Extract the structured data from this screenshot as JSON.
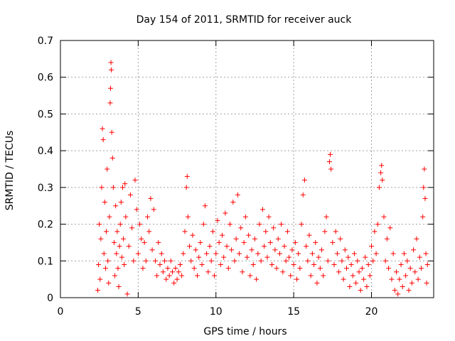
{
  "chart_data": {
    "type": "scatter",
    "title": "Day 154 of 2011, SRMTID for receiver auck",
    "xlabel": "GPS time / hours",
    "ylabel": "SRMTID / TECUs",
    "xlim": [
      0,
      24
    ],
    "ylim": [
      0,
      0.7
    ],
    "xticks": [
      "0",
      "5",
      "10",
      "15",
      "20"
    ],
    "xtick_values": [
      0,
      5,
      10,
      15,
      20
    ],
    "yticks": [
      "0",
      "0.1",
      "0.2",
      "0.3",
      "0.4",
      "0.5",
      "0.6",
      "0.7"
    ],
    "ytick_values": [
      0,
      0.1,
      0.2,
      0.3,
      0.4,
      0.5,
      0.6,
      0.7
    ],
    "grid": true,
    "marker": "+",
    "color": "#ff0000",
    "series": [
      {
        "name": "SRMTID",
        "points": [
          [
            2.4,
            0.02
          ],
          [
            2.45,
            0.09
          ],
          [
            2.5,
            0.2
          ],
          [
            2.55,
            0.05
          ],
          [
            2.6,
            0.16
          ],
          [
            2.65,
            0.3
          ],
          [
            2.7,
            0.46
          ],
          [
            2.75,
            0.43
          ],
          [
            2.8,
            0.12
          ],
          [
            2.85,
            0.26
          ],
          [
            2.9,
            0.08
          ],
          [
            2.95,
            0.18
          ],
          [
            3.0,
            0.35
          ],
          [
            3.05,
            0.1
          ],
          [
            3.1,
            0.04
          ],
          [
            3.15,
            0.22
          ],
          [
            3.2,
            0.53
          ],
          [
            3.22,
            0.57
          ],
          [
            3.25,
            0.64
          ],
          [
            3.27,
            0.62
          ],
          [
            3.3,
            0.45
          ],
          [
            3.35,
            0.38
          ],
          [
            3.4,
            0.3
          ],
          [
            3.45,
            0.15
          ],
          [
            3.5,
            0.06
          ],
          [
            3.55,
            0.25
          ],
          [
            3.6,
            0.12
          ],
          [
            3.65,
            0.18
          ],
          [
            3.7,
            0.08
          ],
          [
            3.75,
            0.03
          ],
          [
            3.8,
            0.14
          ],
          [
            3.85,
            0.2
          ],
          [
            3.9,
            0.26
          ],
          [
            3.95,
            0.11
          ],
          [
            4.0,
            0.3
          ],
          [
            4.05,
            0.16
          ],
          [
            4.1,
            0.09
          ],
          [
            4.15,
            0.31
          ],
          [
            4.2,
            0.22
          ],
          [
            4.3,
            0.01
          ],
          [
            4.4,
            0.14
          ],
          [
            4.5,
            0.28
          ],
          [
            4.6,
            0.19
          ],
          [
            4.7,
            0.1
          ],
          [
            4.8,
            0.32
          ],
          [
            4.9,
            0.24
          ],
          [
            5.0,
            0.12
          ],
          [
            5.1,
            0.2
          ],
          [
            5.2,
            0.16
          ],
          [
            5.3,
            0.08
          ],
          [
            5.4,
            0.15
          ],
          [
            5.5,
            0.1
          ],
          [
            5.6,
            0.22
          ],
          [
            5.7,
            0.18
          ],
          [
            5.8,
            0.27
          ],
          [
            5.9,
            0.13
          ],
          [
            6.0,
            0.24
          ],
          [
            6.1,
            0.1
          ],
          [
            6.2,
            0.06
          ],
          [
            6.3,
            0.15
          ],
          [
            6.4,
            0.09
          ],
          [
            6.5,
            0.12
          ],
          [
            6.6,
            0.07
          ],
          [
            6.7,
            0.1
          ],
          [
            6.8,
            0.05
          ],
          [
            6.9,
            0.08
          ],
          [
            7.0,
            0.06
          ],
          [
            7.1,
            0.1
          ],
          [
            7.2,
            0.07
          ],
          [
            7.3,
            0.04
          ],
          [
            7.4,
            0.08
          ],
          [
            7.5,
            0.05
          ],
          [
            7.6,
            0.07
          ],
          [
            7.7,
            0.09
          ],
          [
            7.8,
            0.06
          ],
          [
            7.9,
            0.12
          ],
          [
            8.0,
            0.18
          ],
          [
            8.1,
            0.3
          ],
          [
            8.15,
            0.33
          ],
          [
            8.2,
            0.22
          ],
          [
            8.3,
            0.14
          ],
          [
            8.4,
            0.1
          ],
          [
            8.5,
            0.17
          ],
          [
            8.6,
            0.08
          ],
          [
            8.7,
            0.13
          ],
          [
            8.8,
            0.06
          ],
          [
            8.9,
            0.11
          ],
          [
            9.0,
            0.15
          ],
          [
            9.1,
            0.09
          ],
          [
            9.2,
            0.2
          ],
          [
            9.3,
            0.25
          ],
          [
            9.4,
            0.12
          ],
          [
            9.5,
            0.07
          ],
          [
            9.6,
            0.14
          ],
          [
            9.7,
            0.1
          ],
          [
            9.8,
            0.18
          ],
          [
            9.9,
            0.06
          ],
          [
            10.0,
            0.12
          ],
          [
            10.1,
            0.21
          ],
          [
            10.2,
            0.15
          ],
          [
            10.3,
            0.09
          ],
          [
            10.4,
            0.17
          ],
          [
            10.5,
            0.11
          ],
          [
            10.6,
            0.23
          ],
          [
            10.7,
            0.14
          ],
          [
            10.8,
            0.08
          ],
          [
            10.9,
            0.2
          ],
          [
            11.0,
            0.13
          ],
          [
            11.1,
            0.26
          ],
          [
            11.2,
            0.1
          ],
          [
            11.3,
            0.16
          ],
          [
            11.4,
            0.28
          ],
          [
            11.5,
            0.12
          ],
          [
            11.6,
            0.19
          ],
          [
            11.7,
            0.07
          ],
          [
            11.8,
            0.15
          ],
          [
            11.9,
            0.22
          ],
          [
            12.0,
            0.11
          ],
          [
            12.1,
            0.17
          ],
          [
            12.2,
            0.06
          ],
          [
            12.3,
            0.13
          ],
          [
            12.4,
            0.09
          ],
          [
            12.5,
            0.16
          ],
          [
            12.6,
            0.05
          ],
          [
            12.7,
            0.12
          ],
          [
            12.8,
            0.2
          ],
          [
            12.9,
            0.1
          ],
          [
            13.0,
            0.24
          ],
          [
            13.1,
            0.14
          ],
          [
            13.2,
            0.18
          ],
          [
            13.3,
            0.11
          ],
          [
            13.4,
            0.22
          ],
          [
            13.5,
            0.15
          ],
          [
            13.6,
            0.09
          ],
          [
            13.7,
            0.19
          ],
          [
            13.8,
            0.13
          ],
          [
            13.9,
            0.08
          ],
          [
            14.0,
            0.16
          ],
          [
            14.1,
            0.12
          ],
          [
            14.2,
            0.2
          ],
          [
            14.3,
            0.07
          ],
          [
            14.4,
            0.14
          ],
          [
            14.5,
            0.1
          ],
          [
            14.6,
            0.18
          ],
          [
            14.7,
            0.11
          ],
          [
            14.8,
            0.06
          ],
          [
            14.9,
            0.13
          ],
          [
            15.0,
            0.09
          ],
          [
            15.1,
            0.15
          ],
          [
            15.2,
            0.05
          ],
          [
            15.3,
            0.12
          ],
          [
            15.4,
            0.08
          ],
          [
            15.5,
            0.2
          ],
          [
            15.6,
            0.28
          ],
          [
            15.7,
            0.32
          ],
          [
            15.8,
            0.14
          ],
          [
            15.9,
            0.1
          ],
          [
            16.0,
            0.17
          ],
          [
            16.1,
            0.06
          ],
          [
            16.2,
            0.12
          ],
          [
            16.3,
            0.09
          ],
          [
            16.4,
            0.15
          ],
          [
            16.5,
            0.04
          ],
          [
            16.6,
            0.11
          ],
          [
            16.7,
            0.08
          ],
          [
            16.8,
            0.13
          ],
          [
            16.9,
            0.06
          ],
          [
            17.0,
            0.18
          ],
          [
            17.1,
            0.22
          ],
          [
            17.2,
            0.1
          ],
          [
            17.3,
            0.37
          ],
          [
            17.35,
            0.39
          ],
          [
            17.4,
            0.35
          ],
          [
            17.5,
            0.15
          ],
          [
            17.6,
            0.09
          ],
          [
            17.7,
            0.18
          ],
          [
            17.8,
            0.12
          ],
          [
            17.9,
            0.07
          ],
          [
            18.0,
            0.16
          ],
          [
            18.1,
            0.1
          ],
          [
            18.2,
            0.05
          ],
          [
            18.3,
            0.13
          ],
          [
            18.4,
            0.08
          ],
          [
            18.5,
            0.11
          ],
          [
            18.6,
            0.03
          ],
          [
            18.7,
            0.09
          ],
          [
            18.8,
            0.06
          ],
          [
            18.9,
            0.12
          ],
          [
            19.0,
            0.04
          ],
          [
            19.1,
            0.1
          ],
          [
            19.2,
            0.07
          ],
          [
            19.3,
            0.02
          ],
          [
            19.4,
            0.08
          ],
          [
            19.5,
            0.05
          ],
          [
            19.6,
            0.11
          ],
          [
            19.7,
            0.03
          ],
          [
            19.8,
            0.09
          ],
          [
            19.9,
            0.06
          ],
          [
            20.0,
            0.14
          ],
          [
            20.1,
            0.1
          ],
          [
            20.2,
            0.18
          ],
          [
            20.3,
            0.12
          ],
          [
            20.4,
            0.2
          ],
          [
            20.5,
            0.3
          ],
          [
            20.6,
            0.34
          ],
          [
            20.65,
            0.36
          ],
          [
            20.7,
            0.32
          ],
          [
            20.8,
            0.22
          ],
          [
            20.9,
            0.1
          ],
          [
            21.0,
            0.16
          ],
          [
            21.1,
            0.08
          ],
          [
            21.2,
            0.19
          ],
          [
            21.3,
            0.05
          ],
          [
            21.4,
            0.12
          ],
          [
            21.5,
            0.02
          ],
          [
            21.6,
            0.07
          ],
          [
            21.7,
            0.01
          ],
          [
            21.8,
            0.05
          ],
          [
            21.9,
            0.09
          ],
          [
            22.0,
            0.03
          ],
          [
            22.1,
            0.12
          ],
          [
            22.2,
            0.06
          ],
          [
            22.3,
            0.1
          ],
          [
            22.4,
            0.02
          ],
          [
            22.5,
            0.08
          ],
          [
            22.6,
            0.04
          ],
          [
            22.7,
            0.13
          ],
          [
            22.8,
            0.07
          ],
          [
            22.9,
            0.16
          ],
          [
            23.0,
            0.05
          ],
          [
            23.1,
            0.11
          ],
          [
            23.2,
            0.08
          ],
          [
            23.3,
            0.22
          ],
          [
            23.35,
            0.3
          ],
          [
            23.4,
            0.35
          ],
          [
            23.45,
            0.27
          ],
          [
            23.5,
            0.12
          ],
          [
            23.55,
            0.04
          ],
          [
            23.6,
            0.09
          ]
        ]
      }
    ]
  }
}
